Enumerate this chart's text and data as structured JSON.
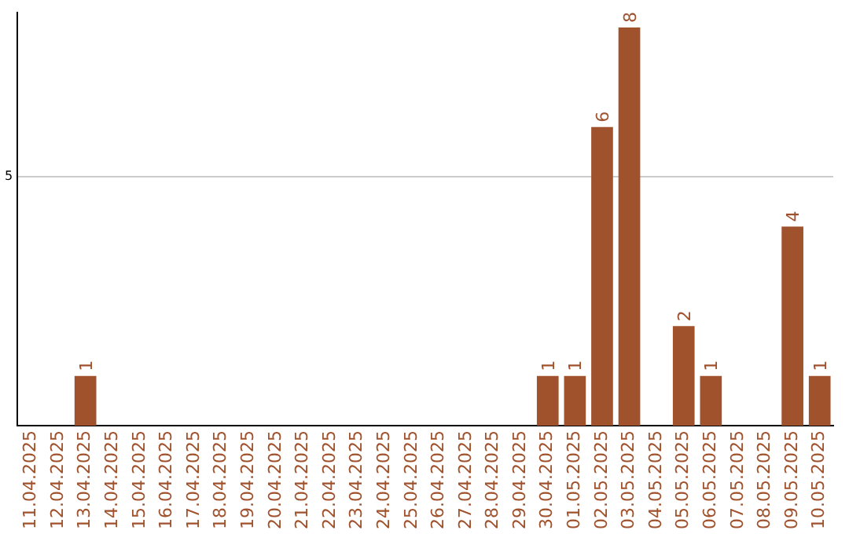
{
  "chart_data": {
    "type": "bar",
    "categories": [
      "11.04.2025",
      "12.04.2025",
      "13.04.2025",
      "14.04.2025",
      "15.04.2025",
      "16.04.2025",
      "17.04.2025",
      "18.04.2025",
      "19.04.2025",
      "20.04.2025",
      "21.04.2025",
      "22.04.2025",
      "23.04.2025",
      "24.04.2025",
      "25.04.2025",
      "26.04.2025",
      "27.04.2025",
      "28.04.2025",
      "29.04.2025",
      "30.04.2025",
      "01.05.2025",
      "02.05.2025",
      "03.05.2025",
      "04.05.2025",
      "05.05.2025",
      "06.05.2025",
      "07.05.2025",
      "08.05.2025",
      "09.05.2025",
      "10.05.2025"
    ],
    "values": [
      0,
      0,
      1,
      0,
      0,
      0,
      0,
      0,
      0,
      0,
      0,
      0,
      0,
      0,
      0,
      0,
      0,
      0,
      0,
      1,
      1,
      6,
      8,
      0,
      2,
      1,
      0,
      0,
      4,
      1
    ],
    "value_labels": [
      null,
      null,
      "1",
      null,
      null,
      null,
      null,
      null,
      null,
      null,
      null,
      null,
      null,
      null,
      null,
      null,
      null,
      null,
      null,
      "1",
      "1",
      "6",
      "8",
      null,
      "2",
      "1",
      null,
      null,
      "4",
      "1"
    ],
    "color": "#a0522d",
    "ylim": [
      0,
      8.3
    ],
    "yticks": [
      5
    ],
    "grid": "y",
    "legend": false
  }
}
